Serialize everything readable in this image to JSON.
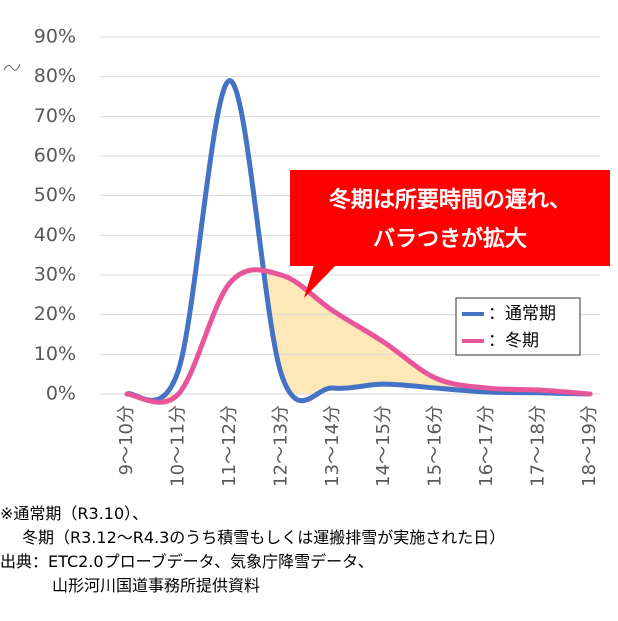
{
  "chart_data": {
    "type": "line",
    "categories": [
      "9～10分",
      "10～11分",
      "11～12分",
      "12～13分",
      "13～14分",
      "14～15分",
      "15～16分",
      "16～17分",
      "17～18分",
      "18～19分"
    ],
    "series": [
      {
        "name": "：通常期",
        "color": "#4472c4",
        "values": [
          0,
          6,
          79,
          5,
          1.5,
          2.5,
          1.5,
          0.5,
          0.3,
          0
        ]
      },
      {
        "name": "：冬期",
        "color": "#e8559b",
        "values": [
          0,
          0,
          28,
          30,
          21,
          13,
          4,
          1.5,
          1,
          0
        ]
      }
    ],
    "ylim": [
      0,
      90
    ],
    "yticks": [
      {
        "value": 0,
        "label": "0%"
      },
      {
        "value": 10,
        "label": "10%"
      },
      {
        "value": 20,
        "label": "20%"
      },
      {
        "value": 30,
        "label": "30%"
      },
      {
        "value": 40,
        "label": "40%"
      },
      {
        "value": 50,
        "label": "50%"
      },
      {
        "value": 60,
        "label": "60%"
      },
      {
        "value": 70,
        "label": "70%"
      },
      {
        "value": 80,
        "label": "80%"
      },
      {
        "value": 90,
        "label": "90%"
      }
    ],
    "grid": true,
    "fill_between_color": "#fde9b8",
    "annotation": {
      "lines": [
        "冬期は所要時間の遅れ、",
        "バラつきが拡大"
      ],
      "color": "#ff0000"
    },
    "notes": [
      "※通常期（R3.10）、",
      "冬期（R3.12～R4.3のうち積雪もしくは運搬排雪が実施された日）",
      "出典：ETC2.0プローブデータ、気象庁降雪データ、",
      "山形河川国道事務所提供資料"
    ]
  }
}
